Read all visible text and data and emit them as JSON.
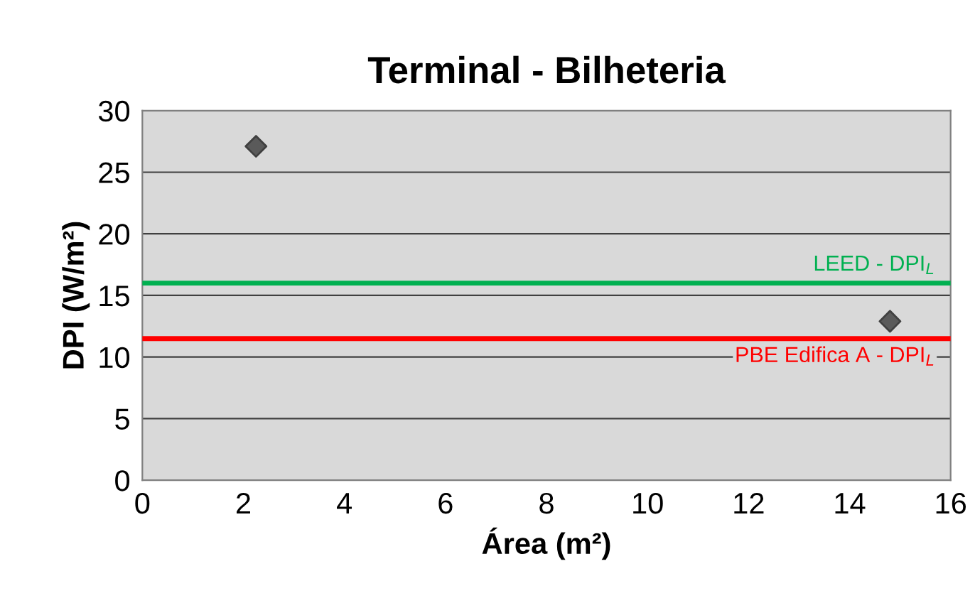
{
  "chart_data": {
    "type": "scatter",
    "title": "Terminal - Bilheteria",
    "xlabel": "Área (m²)",
    "ylabel": "DPI (W/m²)",
    "series": [
      {
        "x": [
          2.25,
          14.8
        ],
        "values": [
          27.1,
          12.9
        ],
        "color": "#5a5a5a"
      }
    ],
    "marker": "diamond",
    "xlim": [
      0,
      16
    ],
    "ylim": [
      0,
      30
    ],
    "xticks": [
      0,
      2,
      4,
      6,
      8,
      10,
      12,
      14,
      16
    ],
    "yticks": [
      0,
      5,
      10,
      15,
      20,
      25,
      30
    ],
    "grid": "y",
    "ref_lines": [
      {
        "axis": "y",
        "value": 16,
        "label": "LEED - DPI$_{L}$",
        "color": "#00b050"
      },
      {
        "axis": "y",
        "value": 11.5,
        "label": "PBE Edifica A - DPI$_{L}$",
        "color": "#ff0000"
      }
    ]
  }
}
